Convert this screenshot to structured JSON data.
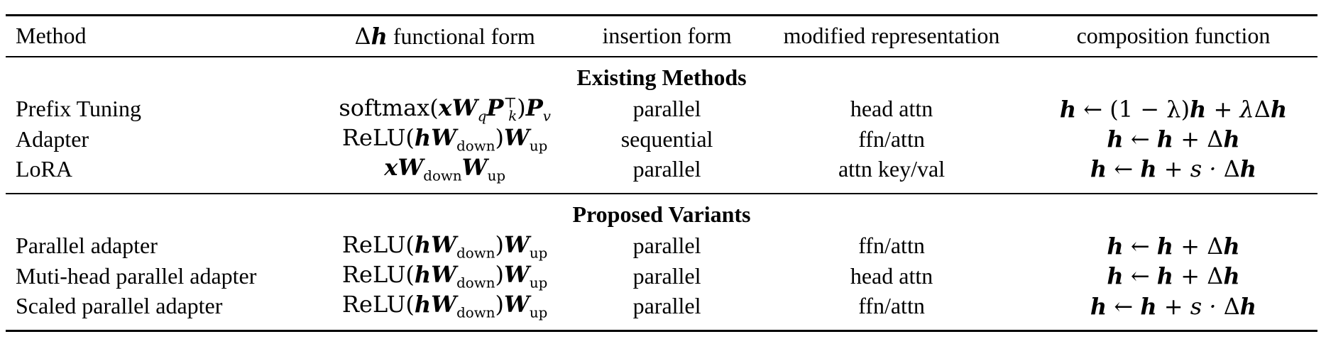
{
  "headers": {
    "method": "Method",
    "functional_form_delta": "Δ",
    "functional_form_h": "h",
    "functional_form_rest": " functional form",
    "insertion_form": "insertion form",
    "modified_representation": "modified representation",
    "composition_function": "composition function"
  },
  "sections": {
    "existing": "Existing Methods",
    "proposed": "Proposed Variants"
  },
  "existing_rows": [
    {
      "method": "Prefix Tuning",
      "insertion": "parallel",
      "modified": "head attn"
    },
    {
      "method": "Adapter",
      "insertion": "sequential",
      "modified": "ffn/attn"
    },
    {
      "method": "LoRA",
      "insertion": "parallel",
      "modified": "attn key/val"
    }
  ],
  "proposed_rows": [
    {
      "method": "Parallel adapter",
      "insertion": "parallel",
      "modified": "ffn/attn"
    },
    {
      "method": "Muti-head parallel adapter",
      "insertion": "parallel",
      "modified": "head attn"
    },
    {
      "method": "Scaled parallel adapter",
      "insertion": "parallel",
      "modified": "ffn/attn"
    }
  ],
  "math": {
    "softmax": "softmax(",
    "relu": "ReLU(",
    "open": "(",
    "close": ")",
    "x": "x",
    "W": "W",
    "P": "P",
    "h": "h",
    "q": "q",
    "k": "k",
    "v": "v",
    "T": "⊤",
    "down": "down",
    "up": "up",
    "arrow": " ← ",
    "one_minus_lambda": "(1 − λ)",
    "lambda": "λ",
    "plus": " + ",
    "delta": "Δ",
    "s_dot": "s · "
  }
}
